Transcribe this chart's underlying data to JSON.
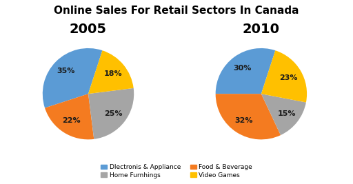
{
  "title": "Online Sales For Retail Sectors In Canada",
  "title_fontsize": 11,
  "title_fontweight": "bold",
  "chart1_year": "2005",
  "chart2_year": "2010",
  "year_fontsize": 14,
  "year_fontweight": "bold",
  "chart1_values": [
    35,
    22,
    25,
    18
  ],
  "chart2_values": [
    30,
    32,
    15,
    23
  ],
  "colors": [
    "#5B9BD5",
    "#F47B20",
    "#A5A5A5",
    "#FFC000"
  ],
  "autopct_fontsize": 8,
  "autopct_color": "#1a1a1a",
  "background_color": "#FFFFFF",
  "legend_items": [
    {
      "label": "Dlectronis & Appliance",
      "color": "#5B9BD5"
    },
    {
      "label": "Home Furnhings",
      "color": "#A5A5A5"
    },
    {
      "label": "Food & Beverage",
      "color": "#F47B20"
    },
    {
      "label": "Video Games",
      "color": "#FFC000"
    }
  ]
}
